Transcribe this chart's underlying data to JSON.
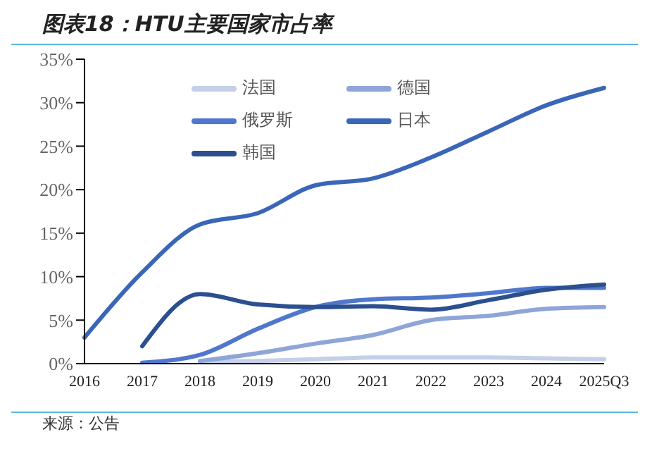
{
  "chart_data": {
    "type": "line",
    "title": "图表18：HTU主要国家市占率",
    "categories": [
      "2016",
      "2017",
      "2018",
      "2019",
      "2020",
      "2021",
      "2022",
      "2023",
      "2024",
      "2025Q3"
    ],
    "series": [
      {
        "name": "法国",
        "color": "#c5cfea",
        "values": [
          null,
          null,
          0.2,
          0.3,
          0.5,
          0.7,
          0.7,
          0.7,
          0.6,
          0.5
        ]
      },
      {
        "name": "德国",
        "color": "#8ea5d8",
        "values": [
          null,
          null,
          0.3,
          1.2,
          2.3,
          3.3,
          5.0,
          5.5,
          6.3,
          6.5
        ]
      },
      {
        "name": "俄罗斯",
        "color": "#4f78cc",
        "values": [
          null,
          0.1,
          1.0,
          4.0,
          6.5,
          7.4,
          7.6,
          8.1,
          8.7,
          8.7
        ]
      },
      {
        "name": "日本",
        "color": "#3a66b8",
        "values": [
          3,
          10.5,
          16,
          17.3,
          20.5,
          21.3,
          23.7,
          26.7,
          29.7,
          31.7
        ]
      },
      {
        "name": "韩国",
        "color": "#2b4f8f",
        "values": [
          null,
          2,
          8,
          6.8,
          6.5,
          6.6,
          6.2,
          7.3,
          8.5,
          9.1
        ]
      }
    ],
    "ylim": [
      0,
      35
    ],
    "yticks": [
      {
        "value": 0,
        "label": "0%"
      },
      {
        "value": 5,
        "label": "5%"
      },
      {
        "value": 10,
        "label": "10%"
      },
      {
        "value": 15,
        "label": "15%"
      },
      {
        "value": 20,
        "label": "20%"
      },
      {
        "value": 25,
        "label": "25%"
      },
      {
        "value": 30,
        "label": "30%"
      },
      {
        "value": 35,
        "label": "35%"
      }
    ],
    "grid": false,
    "legend": "top left",
    "marker": "none",
    "line_style": "solid",
    "annotations": [
      "来源：公告"
    ]
  }
}
